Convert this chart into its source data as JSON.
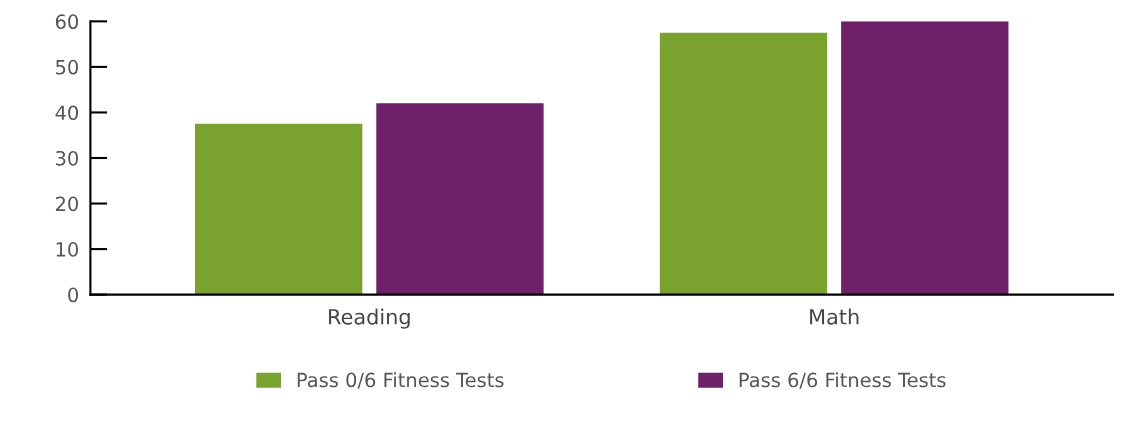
{
  "chart_data": {
    "type": "bar",
    "categories": [
      "Reading",
      "Math"
    ],
    "series": [
      {
        "name": "Pass 0/6 Fitness Tests",
        "color": "#7aa22e",
        "values": [
          37.5,
          57.5
        ]
      },
      {
        "name": "Pass 6/6 Fitness Tests",
        "color": "#6e2069",
        "values": [
          42,
          60
        ]
      }
    ],
    "ylim": [
      0,
      60
    ],
    "yticks": [
      0,
      10,
      20,
      30,
      40,
      50,
      60
    ],
    "grid": false,
    "legend": "bottom"
  }
}
